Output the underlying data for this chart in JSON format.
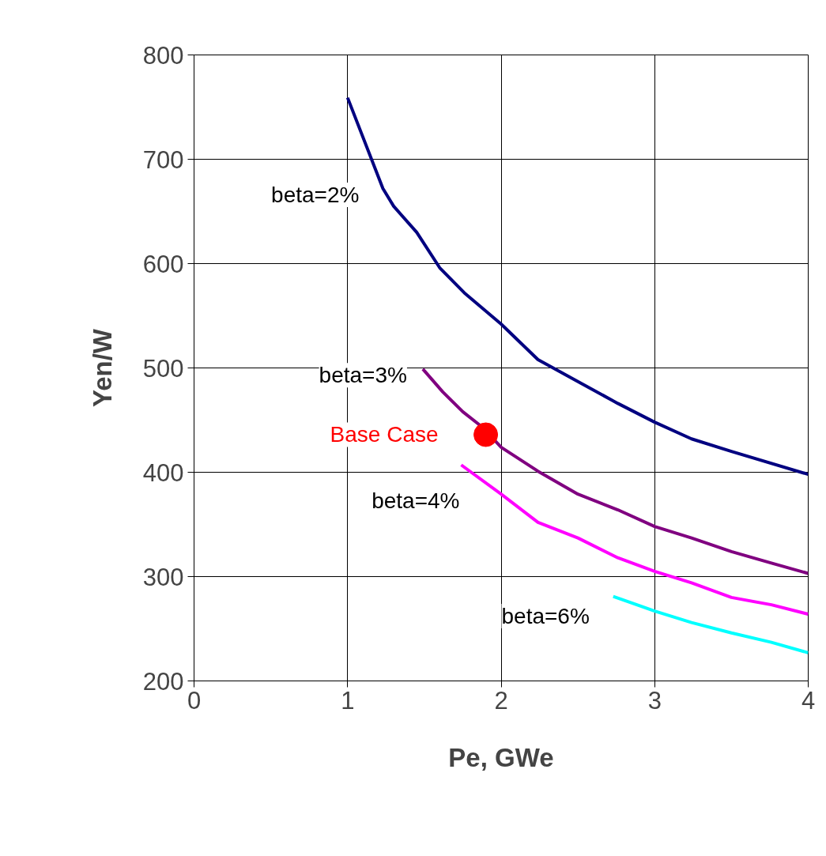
{
  "chart_data": {
    "type": "line",
    "xlabel": "Pe, GWe",
    "ylabel": "Yen/W",
    "xlim": [
      0,
      4
    ],
    "ylim": [
      200,
      800
    ],
    "xticks": [
      0,
      1,
      2,
      3,
      4
    ],
    "yticks": [
      200,
      300,
      400,
      500,
      600,
      700,
      800
    ],
    "grid": true,
    "marker": "none",
    "line_style": "solid",
    "series": [
      {
        "name": "beta=2%",
        "color": "#000080",
        "x": [
          1.0,
          1.23,
          1.3,
          1.45,
          1.6,
          1.76,
          2.0,
          2.24,
          2.5,
          2.76,
          3.0,
          3.24,
          3.5,
          4.0
        ],
        "values": [
          759,
          672,
          655,
          630,
          596,
          572,
          542,
          508,
          487,
          466,
          448,
          432,
          420,
          398
        ]
      },
      {
        "name": "beta=3%",
        "color": "#800080",
        "x": [
          1.49,
          1.62,
          1.75,
          1.88,
          2.0,
          2.24,
          2.5,
          2.76,
          3.0,
          3.24,
          3.5,
          3.76,
          4.0
        ],
        "values": [
          499,
          477,
          458,
          443,
          424,
          401,
          379,
          364,
          348,
          337,
          324,
          313,
          303
        ]
      },
      {
        "name": "beta=4%",
        "color": "#ff00ff",
        "x": [
          1.74,
          2.0,
          2.24,
          2.5,
          2.76,
          3.0,
          3.24,
          3.5,
          3.76,
          4.0
        ],
        "values": [
          407,
          379,
          352,
          337,
          318,
          305,
          294,
          280,
          273,
          264
        ]
      },
      {
        "name": "beta=6%",
        "color": "#00ffff",
        "x": [
          2.73,
          3.0,
          3.24,
          3.5,
          3.76,
          4.0
        ],
        "values": [
          281,
          267,
          256,
          246,
          237,
          227
        ]
      },
      {
        "name": "Base Case",
        "type": "scatter",
        "marker": "circle",
        "color": "#ff0000",
        "x": [
          1.9
        ],
        "values": [
          436
        ]
      }
    ]
  }
}
